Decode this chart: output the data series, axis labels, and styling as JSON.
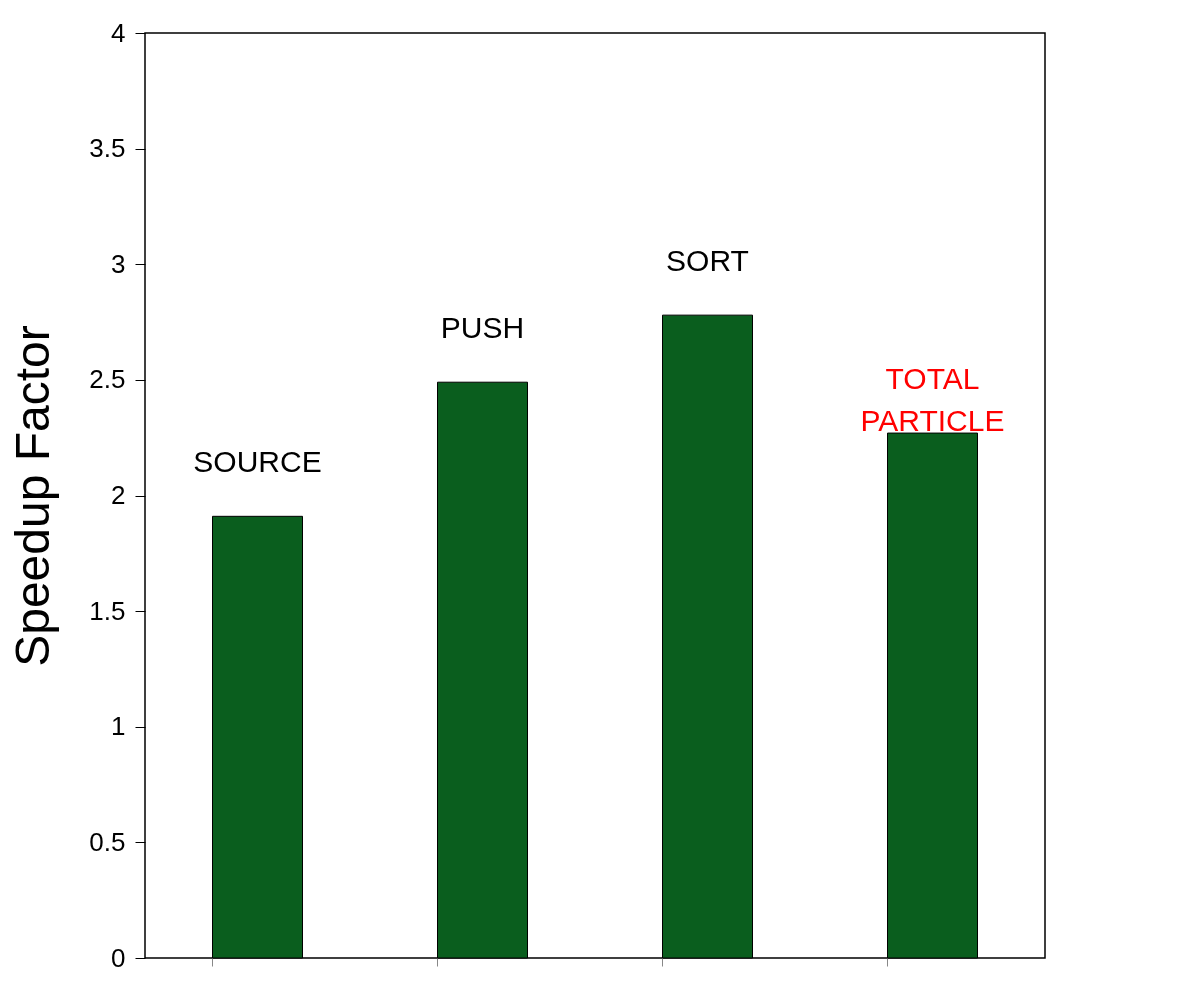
{
  "chart_data": {
    "type": "bar",
    "ylabel": "Speedup Factor",
    "categories": [
      "SOURCE",
      "PUSH",
      "SORT",
      "TOTAL PARTICLE"
    ],
    "values": [
      1.91,
      2.49,
      2.78,
      2.27
    ],
    "color": "#0a5e1e",
    "ylim": [
      0,
      4
    ],
    "yticks": [
      0,
      0.5,
      1,
      1.5,
      2,
      2.5,
      3,
      3.5,
      4
    ],
    "grid": false,
    "tick_labels": "y"
  }
}
